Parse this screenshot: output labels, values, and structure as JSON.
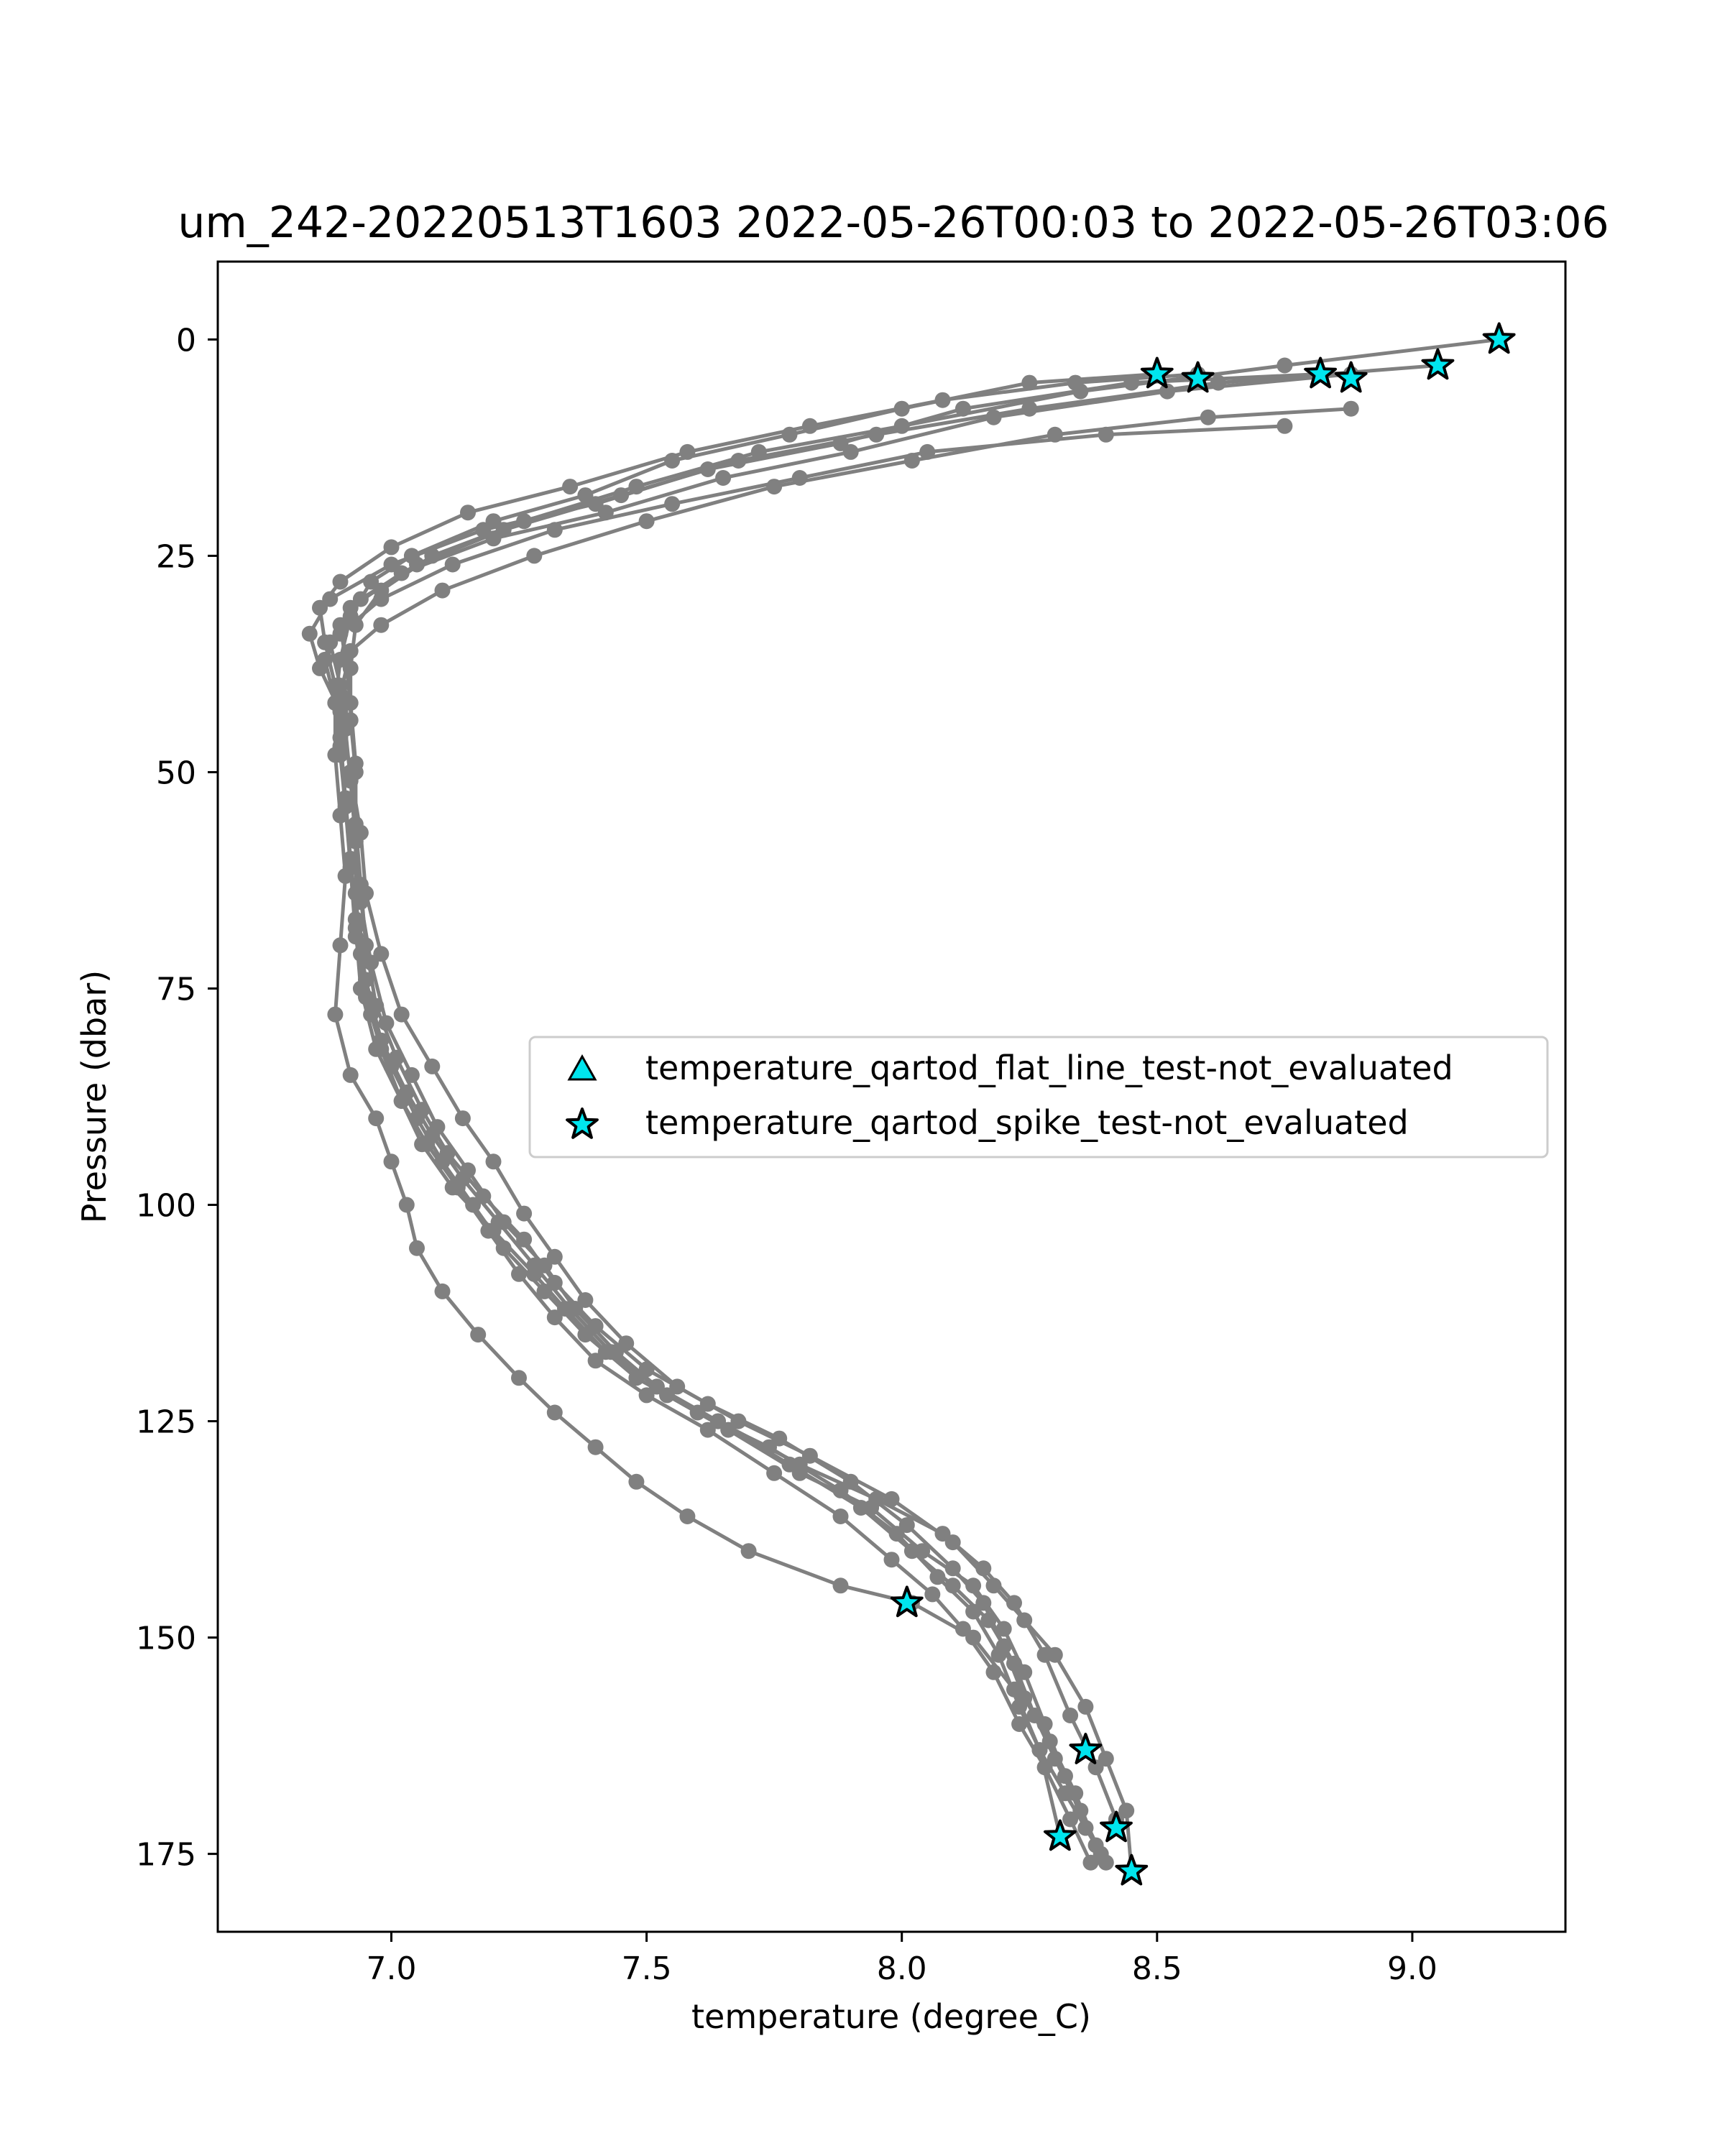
{
  "chart_data": {
    "type": "line",
    "title": "um_242-20220513T1603 2022-05-26T00:03 to 2022-05-26T03:06",
    "xlabel": "temperature (degree_C)",
    "ylabel": "Pressure (dbar)",
    "xlim": [
      6.66,
      9.3
    ],
    "ylim": [
      184,
      -9
    ],
    "y_inverted": true,
    "grid": false,
    "xticks": [
      7.0,
      7.5,
      8.0,
      8.5,
      9.0
    ],
    "xtick_labels": [
      "7.0",
      "7.5",
      "8.0",
      "8.5",
      "9.0"
    ],
    "yticks": [
      0,
      25,
      50,
      75,
      100,
      125,
      150,
      175
    ],
    "ytick_labels": [
      "0",
      "25",
      "50",
      "75",
      "100",
      "125",
      "150",
      "175"
    ],
    "line_color": "#808080",
    "marker_color": "#00e5ee",
    "legend": {
      "placement": "center-right",
      "entries": [
        {
          "label": "temperature_qartod_flat_line_test-not_evaluated",
          "marker": "triangle",
          "color": "#00e5ee"
        },
        {
          "label": "temperature_qartod_spike_test-not_evaluated",
          "marker": "star",
          "color": "#00e5ee"
        }
      ]
    },
    "series": [
      {
        "temperature": [
          8.5,
          8.25,
          8.0,
          7.78,
          7.55,
          7.38,
          7.2,
          7.04,
          6.96,
          6.92,
          6.9,
          6.89,
          6.89,
          6.9,
          6.91,
          6.9,
          6.89,
          6.92,
          6.97,
          7.0,
          7.03,
          7.05,
          7.1,
          7.17,
          7.25,
          7.32,
          7.4,
          7.48,
          7.58,
          7.7,
          7.88,
          8.02,
          8.14,
          8.22,
          8.27,
          8.31
        ],
        "pressure": [
          4,
          5,
          8,
          11,
          14,
          18,
          21,
          25,
          28,
          32,
          37,
          42,
          48,
          55,
          62,
          70,
          78,
          85,
          90,
          95,
          100,
          105,
          110,
          115,
          120,
          124,
          128,
          132,
          136,
          140,
          144,
          146,
          150,
          156,
          163,
          173
        ]
      },
      {
        "temperature": [
          8.58,
          8.34,
          8.08,
          7.82,
          7.58,
          7.35,
          7.15,
          7.0,
          6.9,
          6.86,
          6.87,
          6.89,
          6.9,
          6.91,
          6.92,
          6.93,
          6.95,
          6.98,
          7.02,
          7.06,
          7.12,
          7.2,
          7.28,
          7.34,
          7.42,
          7.52,
          7.64,
          7.8,
          7.95,
          8.08,
          8.16,
          8.22,
          8.28,
          8.33,
          8.38,
          8.42
        ],
        "pressure": [
          4,
          5,
          7,
          10,
          13,
          17,
          20,
          24,
          28,
          31,
          35,
          40,
          46,
          53,
          61,
          69,
          76,
          82,
          88,
          93,
          98,
          103,
          108,
          112,
          117,
          121,
          125,
          130,
          134,
          138,
          142,
          146,
          152,
          159,
          165,
          171
        ]
      },
      {
        "temperature": [
          8.82,
          8.45,
          8.12,
          7.88,
          7.62,
          7.4,
          7.18,
          7.0,
          6.88,
          6.84,
          6.86,
          6.9,
          6.92,
          6.94,
          6.95,
          6.98,
          7.02,
          7.08,
          7.14,
          7.2,
          7.26,
          7.32,
          7.38,
          7.46,
          7.56,
          7.68,
          7.82,
          7.98,
          8.1,
          8.18,
          8.24,
          8.3,
          8.36,
          8.4,
          8.44,
          8.45
        ],
        "pressure": [
          4,
          5,
          8,
          12,
          15,
          19,
          22,
          26,
          30,
          34,
          38,
          43,
          50,
          57,
          64,
          71,
          78,
          84,
          90,
          95,
          101,
          106,
          111,
          116,
          121,
          125,
          129,
          134,
          139,
          144,
          148,
          152,
          158,
          164,
          170,
          177
        ]
      },
      {
        "temperature": [
          8.88,
          8.52,
          8.18,
          7.9,
          7.65,
          7.42,
          7.2,
          7.02,
          6.92,
          6.88,
          6.9,
          6.91,
          6.92,
          6.93,
          6.94,
          6.96,
          6.99,
          7.04,
          7.09,
          7.15,
          7.22,
          7.3,
          7.36,
          7.44,
          7.54,
          7.66,
          7.8,
          7.94,
          8.04,
          8.14,
          8.2,
          8.24,
          8.28,
          8.32,
          8.36,
          8.4
        ],
        "pressure": [
          4,
          6,
          9,
          13,
          16,
          20,
          23,
          27,
          31,
          35,
          40,
          45,
          51,
          58,
          65,
          72,
          79,
          85,
          91,
          96,
          102,
          107,
          112,
          117,
          122,
          126,
          131,
          135,
          140,
          144,
          149,
          154,
          160,
          166,
          172,
          176
        ]
      },
      {
        "temperature": [
          9.05,
          8.62,
          8.25,
          7.95,
          7.68,
          7.45,
          7.22,
          7.05,
          6.94,
          6.9,
          6.91,
          6.92,
          6.93,
          6.93,
          6.94,
          6.95,
          6.97,
          7.01,
          7.06,
          7.11,
          7.18,
          7.26,
          7.32,
          7.4,
          7.5,
          7.62,
          7.76,
          7.9,
          8.01,
          8.1,
          8.16,
          8.2,
          8.24,
          8.29,
          8.34,
          8.38
        ],
        "pressure": [
          3,
          5,
          8,
          11,
          14,
          18,
          22,
          26,
          30,
          33,
          37,
          42,
          49,
          56,
          63,
          70,
          77,
          83,
          89,
          94,
          99,
          104,
          109,
          114,
          119,
          123,
          127,
          132,
          137,
          142,
          146,
          151,
          157,
          162,
          168,
          174
        ]
      },
      {
        "temperature": [
          9.17,
          8.75,
          8.35,
          8.0,
          7.72,
          7.48,
          7.26,
          7.08,
          6.98,
          6.93,
          6.92,
          6.92,
          6.93,
          6.93,
          6.93,
          6.94,
          6.96,
          7.0,
          7.05,
          7.1,
          7.16,
          7.22,
          7.3,
          7.38,
          7.48,
          7.6,
          7.74,
          7.88,
          7.99,
          8.07,
          8.14,
          8.19,
          8.23,
          8.27,
          8.32,
          8.36
        ],
        "pressure": [
          0,
          3,
          6,
          10,
          13,
          17,
          21,
          25,
          29,
          33,
          38,
          44,
          50,
          57,
          64,
          71,
          78,
          84,
          90,
          95,
          100,
          105,
          110,
          115,
          120,
          124,
          128,
          133,
          138,
          143,
          147,
          152,
          158,
          163,
          168,
          172
        ]
      },
      {
        "temperature": [
          8.88,
          8.6,
          8.3,
          8.02,
          7.75,
          7.5,
          7.28,
          7.1,
          6.98,
          6.92,
          6.9,
          6.9,
          6.91,
          6.92,
          6.93,
          6.95,
          6.98,
          7.03,
          7.08,
          7.14,
          7.21,
          7.28,
          7.35,
          7.43,
          7.52,
          7.64,
          7.78,
          7.92,
          8.02,
          8.1,
          8.17,
          8.22,
          8.26,
          8.3,
          8.35,
          8.39
        ],
        "pressure": [
          8,
          9,
          11,
          14,
          17,
          21,
          25,
          29,
          33,
          36,
          41,
          47,
          53,
          60,
          67,
          74,
          81,
          87,
          92,
          97,
          102,
          107,
          112,
          117,
          121,
          125,
          130,
          135,
          140,
          144,
          148,
          153,
          159,
          164,
          170,
          175
        ]
      },
      {
        "temperature": [
          8.75,
          8.4,
          8.05,
          7.8,
          7.55,
          7.32,
          7.12,
          6.98,
          6.9,
          6.87,
          6.89,
          6.9,
          6.91,
          6.92,
          6.93,
          6.94,
          6.97,
          7.02,
          7.07,
          7.13,
          7.19,
          7.25,
          7.32,
          7.4,
          7.5,
          7.62,
          7.75,
          7.88,
          7.98,
          8.06,
          8.12,
          8.18,
          8.23,
          8.28,
          8.33,
          8.37
        ],
        "pressure": [
          10,
          11,
          13,
          16,
          19,
          22,
          26,
          30,
          34,
          37,
          42,
          48,
          54,
          61,
          68,
          75,
          82,
          88,
          93,
          98,
          103,
          108,
          113,
          118,
          122,
          126,
          131,
          136,
          141,
          145,
          149,
          154,
          160,
          165,
          171,
          176
        ]
      }
    ],
    "flagged_points": [
      {
        "marker": "star",
        "temperature": 9.17,
        "pressure": 0
      },
      {
        "marker": "star",
        "temperature": 9.05,
        "pressure": 3
      },
      {
        "marker": "star",
        "temperature": 8.5,
        "pressure": 4
      },
      {
        "marker": "star",
        "temperature": 8.58,
        "pressure": 4.5
      },
      {
        "marker": "star",
        "temperature": 8.82,
        "pressure": 4
      },
      {
        "marker": "star",
        "temperature": 8.88,
        "pressure": 4.5
      },
      {
        "marker": "star",
        "temperature": 8.01,
        "pressure": 146
      },
      {
        "marker": "star",
        "temperature": 8.36,
        "pressure": 163
      },
      {
        "marker": "star",
        "temperature": 8.31,
        "pressure": 173
      },
      {
        "marker": "star",
        "temperature": 8.42,
        "pressure": 172
      },
      {
        "marker": "star",
        "temperature": 8.45,
        "pressure": 177
      }
    ]
  }
}
